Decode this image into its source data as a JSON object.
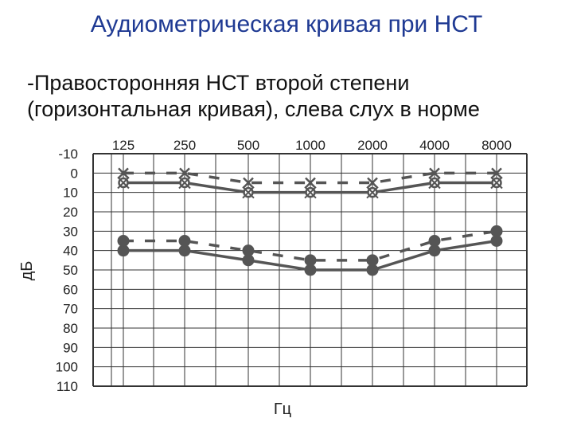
{
  "slide": {
    "title": "Аудиометрическая кривая при НСТ",
    "lines": [
      "-Правосторонняя НСТ второй степени",
      "(горизонтальная кривая), слева слух в норме"
    ]
  },
  "chart_data": {
    "type": "line",
    "title": "",
    "xlabel": "Гц",
    "ylabel": "дБ",
    "x": [
      "125",
      "250",
      "500",
      "1000",
      "2000",
      "4000",
      "8000"
    ],
    "y_ticks": [
      -10,
      0,
      10,
      20,
      30,
      40,
      50,
      60,
      70,
      80,
      90,
      100,
      110
    ],
    "ylim": [
      -10,
      110
    ],
    "y_inverted": true,
    "grid": true,
    "series": [
      {
        "values": [
          5,
          5,
          10,
          10,
          10,
          5,
          5
        ],
        "style": "solid",
        "marker": "circle-cross",
        "color": "#555555"
      },
      {
        "values": [
          0,
          0,
          5,
          5,
          5,
          0,
          0
        ],
        "style": "dashed",
        "marker": "x",
        "color": "#555555"
      },
      {
        "values": [
          40,
          40,
          45,
          50,
          50,
          40,
          35
        ],
        "style": "solid",
        "marker": "dot",
        "color": "#555555"
      },
      {
        "values": [
          35,
          35,
          40,
          45,
          45,
          35,
          30
        ],
        "style": "dashed",
        "marker": "dot",
        "color": "#555555"
      }
    ]
  }
}
